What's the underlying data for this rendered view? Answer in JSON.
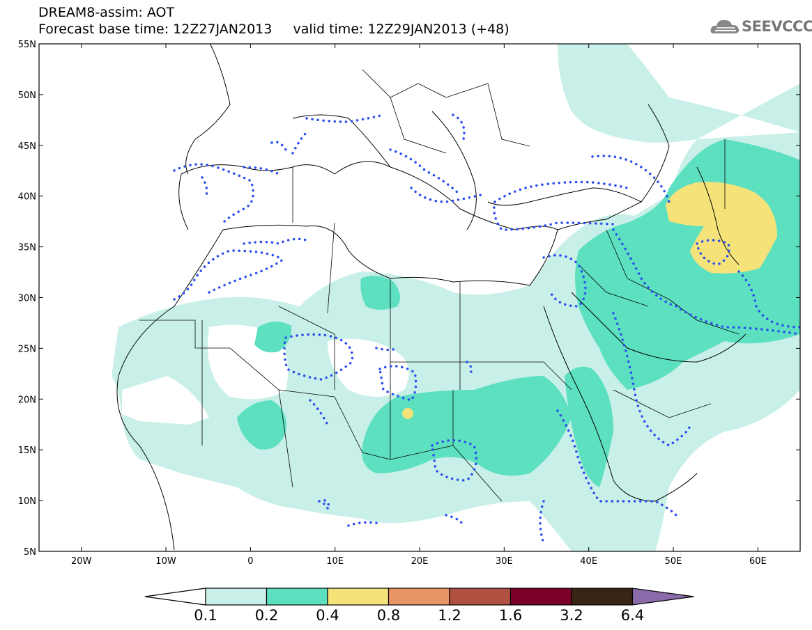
{
  "header": {
    "title_line1": "DREAM8-assim: AOT",
    "title_line2": "Forecast base time: 12Z27JAN2013     valid time: 12Z29JAN2013 (+48)"
  },
  "logo": {
    "text": "SEEVCCC",
    "icon": "cloud-logo-icon"
  },
  "map": {
    "lat_labels": [
      "55N",
      "50N",
      "45N",
      "40N",
      "35N",
      "30N",
      "25N",
      "20N",
      "15N",
      "10N",
      "5N"
    ],
    "lon_labels": [
      "20W",
      "10W",
      "0",
      "10E",
      "20E",
      "30E",
      "40E",
      "50E",
      "60E"
    ],
    "lat_range": [
      5,
      55
    ],
    "lon_range": [
      -25,
      65
    ],
    "contour_style": "blue dotted"
  },
  "legend": {
    "colors": [
      "#c8f0e8",
      "#5de0c0",
      "#f5e37a",
      "#e89464",
      "#b05040",
      "#7a0028",
      "#3a2414",
      "#8a6aa8"
    ],
    "labels": [
      "0.1",
      "0.2",
      "0.4",
      "0.8",
      "1.2",
      "1.6",
      "3.2",
      "6.4"
    ]
  }
}
